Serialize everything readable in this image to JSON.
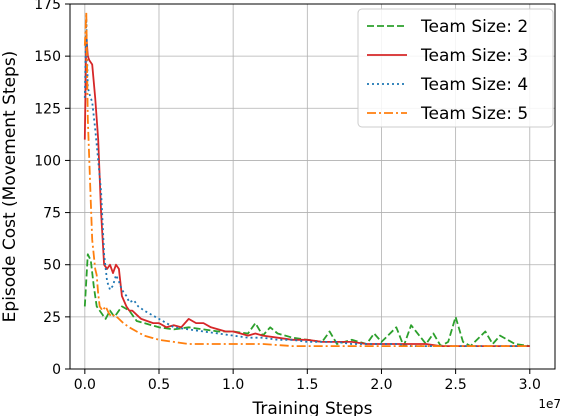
{
  "chart_data": {
    "type": "line",
    "title": "",
    "xlabel": "Training Steps",
    "ylabel": "Episode Cost (Movement Steps)",
    "x_offset_label": "1e7",
    "xlim": [
      -0.1,
      3.17
    ],
    "ylim": [
      0,
      175
    ],
    "x_ticks": [
      0.0,
      0.5,
      1.0,
      1.5,
      2.0,
      2.5,
      3.0
    ],
    "x_tick_labels": [
      "0.0",
      "0.5",
      "1.0",
      "1.5",
      "2.0",
      "2.5",
      "3.0"
    ],
    "y_ticks": [
      0,
      25,
      50,
      75,
      100,
      125,
      150,
      175
    ],
    "y_tick_labels": [
      "0",
      "25",
      "50",
      "75",
      "100",
      "125",
      "150",
      "175"
    ],
    "grid": true,
    "legend_position": "top-right",
    "series": [
      {
        "name": "Team Size: 2",
        "color": "#2ca02c",
        "dash": "dashed",
        "x": [
          0.0,
          0.02,
          0.04,
          0.06,
          0.08,
          0.1,
          0.12,
          0.14,
          0.17,
          0.2,
          0.25,
          0.3,
          0.35,
          0.4,
          0.5,
          0.6,
          0.7,
          0.8,
          0.9,
          1.0,
          1.1,
          1.15,
          1.2,
          1.25,
          1.3,
          1.4,
          1.5,
          1.6,
          1.65,
          1.7,
          1.8,
          1.9,
          1.95,
          2.0,
          2.1,
          2.15,
          2.2,
          2.3,
          2.35,
          2.4,
          2.45,
          2.5,
          2.55,
          2.6,
          2.7,
          2.75,
          2.8,
          2.9,
          3.0
        ],
        "y": [
          30,
          55,
          52,
          40,
          30,
          28,
          26,
          24,
          28,
          25,
          30,
          28,
          23,
          22,
          20,
          19,
          20,
          19,
          18,
          18,
          17,
          22,
          16,
          20,
          17,
          15,
          14,
          13,
          18,
          12,
          14,
          12,
          17,
          13,
          20,
          11,
          21,
          12,
          17,
          11,
          13,
          25,
          13,
          11,
          18,
          12,
          16,
          12,
          11
        ]
      },
      {
        "name": "Team Size: 3",
        "color": "#d62728",
        "dash": "solid",
        "x": [
          0.0,
          0.01,
          0.02,
          0.03,
          0.05,
          0.07,
          0.09,
          0.11,
          0.13,
          0.15,
          0.17,
          0.19,
          0.21,
          0.23,
          0.25,
          0.28,
          0.3,
          0.32,
          0.35,
          0.38,
          0.42,
          0.46,
          0.5,
          0.55,
          0.6,
          0.65,
          0.7,
          0.75,
          0.8,
          0.85,
          0.9,
          0.95,
          1.0,
          1.05,
          1.1,
          1.15,
          1.2,
          1.3,
          1.4,
          1.5,
          1.6,
          1.7,
          1.8,
          1.9,
          2.0,
          2.1,
          2.2,
          2.3,
          2.4,
          2.5,
          2.6,
          2.7,
          2.8,
          2.9,
          3.0
        ],
        "y": [
          110,
          160,
          150,
          148,
          146,
          130,
          110,
          75,
          50,
          48,
          50,
          46,
          50,
          48,
          35,
          30,
          28,
          28,
          26,
          24,
          23,
          22,
          22,
          20,
          21,
          20,
          24,
          22,
          22,
          20,
          19,
          18,
          18,
          17,
          16,
          17,
          16,
          15,
          14,
          14,
          13,
          13,
          13,
          12,
          12,
          12,
          12,
          12,
          11,
          11,
          11,
          11,
          11,
          11,
          11
        ]
      },
      {
        "name": "Team Size: 4",
        "color": "#1f77b4",
        "dash": "dotted",
        "x": [
          0.0,
          0.01,
          0.02,
          0.03,
          0.05,
          0.07,
          0.09,
          0.11,
          0.13,
          0.15,
          0.17,
          0.19,
          0.21,
          0.23,
          0.25,
          0.28,
          0.3,
          0.33,
          0.36,
          0.4,
          0.45,
          0.5,
          0.55,
          0.6,
          0.7,
          0.8,
          0.9,
          1.0,
          1.1,
          1.2,
          1.3,
          1.4,
          1.5,
          1.6,
          1.7,
          1.8,
          1.9,
          2.0,
          2.1,
          2.2,
          2.3,
          2.4,
          2.5,
          2.6,
          2.7,
          2.8,
          2.9,
          3.0
        ],
        "y": [
          130,
          168,
          135,
          132,
          128,
          115,
          100,
          85,
          55,
          42,
          38,
          40,
          45,
          42,
          38,
          35,
          32,
          33,
          30,
          28,
          26,
          24,
          22,
          20,
          19,
          18,
          17,
          16,
          15,
          15,
          14,
          14,
          13,
          13,
          13,
          12,
          12,
          12,
          12,
          11,
          11,
          11,
          11,
          11,
          11,
          11,
          11,
          11
        ]
      },
      {
        "name": "Team Size: 5",
        "color": "#ff7f0e",
        "dash": "dashdot",
        "x": [
          0.0,
          0.01,
          0.02,
          0.03,
          0.04,
          0.05,
          0.06,
          0.07,
          0.08,
          0.09,
          0.1,
          0.12,
          0.14,
          0.16,
          0.18,
          0.2,
          0.23,
          0.26,
          0.3,
          0.35,
          0.4,
          0.45,
          0.5,
          0.6,
          0.7,
          0.8,
          0.9,
          1.0,
          1.2,
          1.4,
          1.6,
          1.8,
          2.0,
          2.2,
          2.4,
          2.6,
          2.8,
          3.0
        ],
        "y": [
          155,
          171,
          120,
          100,
          80,
          62,
          55,
          48,
          45,
          36,
          30,
          28,
          30,
          27,
          25,
          26,
          24,
          22,
          20,
          18,
          16,
          15,
          14,
          13,
          12,
          12,
          12,
          12,
          12,
          11,
          11,
          11,
          11,
          11,
          11,
          11,
          11,
          11
        ]
      }
    ]
  }
}
